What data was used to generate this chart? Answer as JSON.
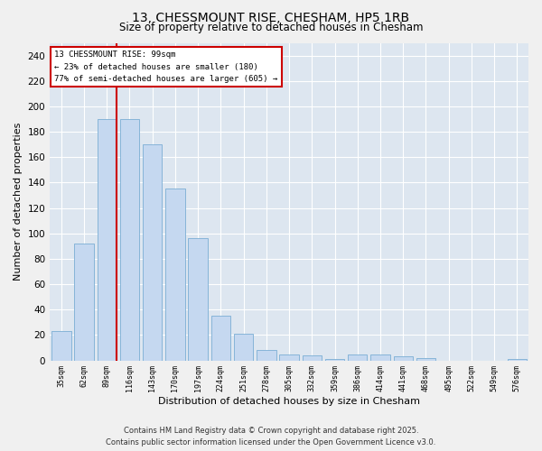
{
  "title1": "13, CHESSMOUNT RISE, CHESHAM, HP5 1RB",
  "title2": "Size of property relative to detached houses in Chesham",
  "xlabel": "Distribution of detached houses by size in Chesham",
  "ylabel": "Number of detached properties",
  "categories": [
    "35sqm",
    "62sqm",
    "89sqm",
    "116sqm",
    "143sqm",
    "170sqm",
    "197sqm",
    "224sqm",
    "251sqm",
    "278sqm",
    "305sqm",
    "332sqm",
    "359sqm",
    "386sqm",
    "414sqm",
    "441sqm",
    "468sqm",
    "495sqm",
    "522sqm",
    "549sqm",
    "576sqm"
  ],
  "values": [
    23,
    92,
    190,
    190,
    170,
    135,
    96,
    35,
    21,
    8,
    5,
    4,
    1,
    5,
    5,
    3,
    2,
    0,
    0,
    0,
    1
  ],
  "bar_color": "#c5d8f0",
  "bar_edge_color": "#7aadd4",
  "annotation_title": "13 CHESSMOUNT RISE: 99sqm",
  "annotation_line1": "← 23% of detached houses are smaller (180)",
  "annotation_line2": "77% of semi-detached houses are larger (605) →",
  "annotation_box_facecolor": "#ffffff",
  "annotation_box_edgecolor": "#cc0000",
  "ylim": [
    0,
    250
  ],
  "yticks": [
    0,
    20,
    40,
    60,
    80,
    100,
    120,
    140,
    160,
    180,
    200,
    220,
    240
  ],
  "plot_bg_color": "#dde6f0",
  "fig_bg_color": "#f0f0f0",
  "red_line_color": "#cc0000",
  "footer1": "Contains HM Land Registry data © Crown copyright and database right 2025.",
  "footer2": "Contains public sector information licensed under the Open Government Licence v3.0.",
  "grid_color": "#ffffff"
}
